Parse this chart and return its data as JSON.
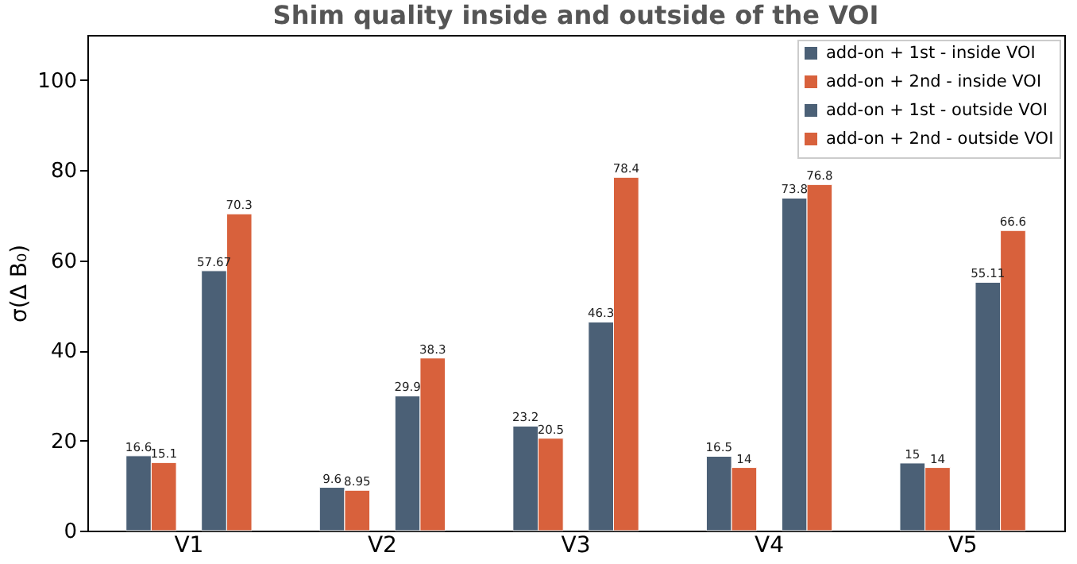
{
  "chart_data": {
    "type": "bar",
    "title": "Shim quality inside and outside of the VOI",
    "ylabel": "σ(Δ B₀)",
    "categories": [
      "V1",
      "V2",
      "V3",
      "V4",
      "V5"
    ],
    "series": [
      {
        "name": "add-on + 1st - inside VOI",
        "color": "#4b6076",
        "values": [
          16.6,
          9.6,
          23.2,
          16.5,
          15
        ]
      },
      {
        "name": "add-on + 2nd - inside VOI",
        "color": "#d8613c",
        "values": [
          15.1,
          8.95,
          20.5,
          14,
          14
        ]
      },
      {
        "name": "add-on + 1st - outside VOI",
        "color": "#4b6076",
        "values": [
          57.67,
          29.9,
          46.3,
          73.8,
          55.11
        ]
      },
      {
        "name": "add-on + 2nd - outside VOI",
        "color": "#d8613c",
        "values": [
          70.3,
          38.3,
          78.4,
          76.8,
          66.6
        ]
      }
    ],
    "ylim": [
      0,
      110
    ],
    "yticks": [
      0,
      20,
      40,
      60,
      80,
      100
    ],
    "data_labels": true,
    "legend": "top right",
    "grid": false
  }
}
